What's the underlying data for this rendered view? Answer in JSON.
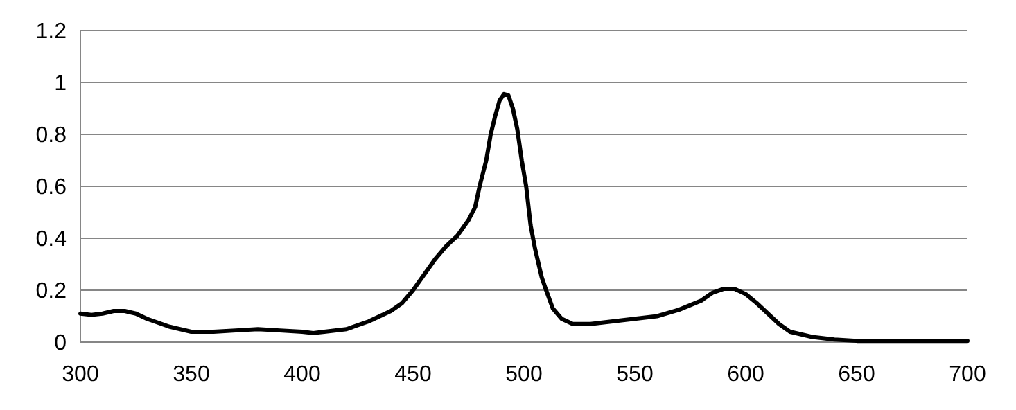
{
  "chart_data": {
    "type": "line",
    "xlim": [
      300,
      700
    ],
    "xticks": [
      300,
      350,
      400,
      450,
      500,
      550,
      600,
      650,
      700
    ],
    "ylim": [
      0,
      1.2
    ],
    "yticks": [
      0,
      0.2,
      0.4,
      0.6,
      0.8,
      1,
      1.2
    ],
    "grid": "y",
    "marker": "none",
    "line_style": "solid",
    "series": [
      {
        "color": "#000000",
        "x": [
          300,
          305,
          310,
          315,
          320,
          325,
          330,
          340,
          350,
          360,
          370,
          380,
          390,
          400,
          405,
          410,
          420,
          430,
          440,
          445,
          450,
          455,
          460,
          465,
          470,
          475,
          478,
          480,
          483,
          485,
          487,
          489,
          491,
          493,
          495,
          497,
          499,
          501,
          503,
          505,
          508,
          510,
          513,
          517,
          522,
          530,
          540,
          550,
          560,
          570,
          580,
          585,
          590,
          595,
          600,
          605,
          610,
          615,
          620,
          630,
          640,
          650,
          670,
          690,
          700
        ],
        "values": [
          0.11,
          0.105,
          0.11,
          0.12,
          0.12,
          0.11,
          0.09,
          0.06,
          0.04,
          0.04,
          0.045,
          0.05,
          0.045,
          0.04,
          0.035,
          0.04,
          0.05,
          0.08,
          0.12,
          0.15,
          0.2,
          0.26,
          0.32,
          0.37,
          0.41,
          0.47,
          0.52,
          0.6,
          0.7,
          0.8,
          0.87,
          0.93,
          0.955,
          0.95,
          0.9,
          0.82,
          0.7,
          0.6,
          0.45,
          0.36,
          0.25,
          0.2,
          0.13,
          0.09,
          0.07,
          0.07,
          0.08,
          0.09,
          0.1,
          0.125,
          0.16,
          0.19,
          0.205,
          0.205,
          0.185,
          0.15,
          0.11,
          0.07,
          0.04,
          0.02,
          0.01,
          0.005,
          0.005,
          0.005,
          0.005
        ]
      }
    ]
  }
}
